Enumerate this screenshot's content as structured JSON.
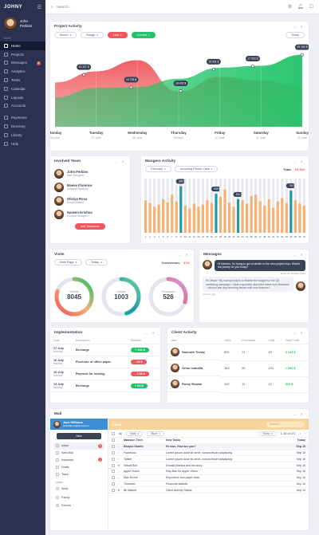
{
  "brand": "JOHNY",
  "user": {
    "name_line1": "John",
    "name_line2": "Perkins"
  },
  "sidebar": {
    "section_main": "MAIN",
    "items": [
      {
        "label": "Home",
        "icon": "home-icon",
        "active": true
      },
      {
        "label": "Projects",
        "icon": "folder-icon"
      },
      {
        "label": "Messages",
        "icon": "message-icon",
        "badge": "5"
      },
      {
        "label": "Analytics",
        "icon": "chart-icon"
      },
      {
        "label": "Tasks",
        "icon": "tasks-icon"
      },
      {
        "label": "Calendar",
        "icon": "calendar-icon"
      },
      {
        "label": "Layouts",
        "icon": "layout-icon"
      },
      {
        "label": "Accounts",
        "icon": "user-icon"
      }
    ],
    "items2": [
      {
        "label": "Payments",
        "icon": "payment-icon"
      },
      {
        "label": "Directory",
        "icon": "directory-icon"
      },
      {
        "label": "Library",
        "icon": "library-icon"
      },
      {
        "label": "Help",
        "icon": "help-icon"
      }
    ]
  },
  "search": {
    "placeholder": "Search..."
  },
  "project": {
    "title": "Project Activity",
    "filters": [
      "Month",
      "Range",
      "Last",
      "Current"
    ],
    "today": "Today"
  },
  "chart_data": {
    "type": "area",
    "categories": [
      "Monday",
      "Tuesday",
      "Wednesday",
      "Thursday",
      "Friday",
      "Saturday",
      "Sunday"
    ],
    "dates": [
      "06 June",
      "07 June",
      "08 June",
      "09 June",
      "10 June",
      "11 June",
      "12 June"
    ],
    "series": [
      {
        "values": [
          12000,
          15000,
          18000,
          9500,
          13500,
          12500,
          11000
        ],
        "color": "#f0565b"
      },
      {
        "values": [
          8000,
          10500,
          10728,
          13000,
          16000,
          16500,
          19500
        ],
        "color": "#21c368"
      }
    ],
    "annotations": [
      "12 107 $",
      "10 728 $",
      "18 400 $",
      "15 631 $",
      "17 903 $",
      "19 193 $"
    ]
  },
  "team": {
    "title": "Involved Team",
    "members": [
      {
        "name": "John Perkins",
        "role": "Web Designer"
      },
      {
        "name": "Maeve Florence",
        "role": "Software Analysis"
      },
      {
        "name": "Oliviya Rosa",
        "role": "Scrum Master"
      },
      {
        "name": "Naveen Krishna",
        "role": "Product Designer"
      }
    ],
    "add_label": "Add Teammate"
  },
  "managers": {
    "title": "Mangers Activity",
    "month": "February",
    "type": "Incoming Phone Calls",
    "total_label": "Total:",
    "total_value": "19 302",
    "bar_values": [
      60,
      55,
      48,
      52,
      62,
      56,
      70,
      58,
      86,
      50,
      45,
      54,
      48,
      52,
      60,
      55,
      72,
      66,
      80,
      56,
      48,
      62,
      60,
      54,
      68,
      70,
      58,
      50,
      62,
      46,
      58,
      64,
      55,
      78,
      60,
      54,
      50
    ],
    "highlights": [
      {
        "index": 8,
        "value": "665"
      },
      {
        "index": 16,
        "value": "659"
      },
      {
        "index": 21,
        "value": "910"
      },
      {
        "index": 33,
        "value": "782"
      }
    ],
    "ticks": [
      "1",
      "2",
      "3",
      "4",
      "5",
      "6",
      "7",
      "8",
      "9",
      "10",
      "11",
      "12",
      "13",
      "14",
      "15",
      "16",
      "17",
      "18",
      "19",
      "20",
      "21",
      "22",
      "23",
      "24",
      "25",
      "26",
      "27",
      "28",
      "29",
      "30",
      "31",
      "32",
      "33",
      "34",
      "35",
      "36",
      "37"
    ]
  },
  "visits": {
    "title": "Visits",
    "source": "Web Page",
    "period": "Today",
    "conversion_label": "Conversion:",
    "conversion_value": "31%",
    "rings": [
      {
        "label": "Visitors",
        "value": "8045",
        "fraction": 0.8
      },
      {
        "label": "Unique",
        "value": "1003",
        "fraction": 0.45
      },
      {
        "label": "Purchases",
        "value": "526",
        "fraction": 0.3
      }
    ]
  },
  "messages": {
    "title": "Messages",
    "m1": "Hi Naveen, I'm trying to get a handle on the new project reqs. What's the priority for you today?",
    "m1_time": "16:16, 07 October 2024",
    "m2": "Hi Olivya! \"My main priority is to finalize the budget for the Q4 marketing campaign. I have a question about the latest user feedback – did you see any recurring issues with new features?",
    "m2_time": "10 mins ago"
  },
  "impl": {
    "title": "Implementation",
    "headers": [
      "Date",
      "Description",
      "Balance"
    ],
    "rows": [
      {
        "date": "17 July",
        "day": "Monday",
        "desc": "Recharge",
        "amount": "+ 134 $",
        "color": "#21c368"
      },
      {
        "date": "16 July",
        "day": "Monday",
        "desc": "Purchase of office paper",
        "amount": "- 30 $",
        "color": "#f0565b"
      },
      {
        "date": "16 July",
        "day": "Monday",
        "desc": "Payment for hosting",
        "amount": "- 7.00 $",
        "color": "#f0565b"
      },
      {
        "date": "14 July",
        "day": "Monday",
        "desc": "Recharge",
        "amount": "+ 68 $",
        "color": "#21c368"
      }
    ]
  },
  "client": {
    "title": "Client Activity",
    "headers": [
      "User",
      "Visits",
      "Purchases",
      "Calls",
      "Total Profit"
    ],
    "rows": [
      {
        "name": "Samrath Tevraj",
        "visits": "801",
        "purchases": "21",
        "calls": "43",
        "profit": "3 244 $"
      },
      {
        "name": "Omar Isabella",
        "visits": "343",
        "purchases": "92",
        "calls": "102",
        "profit": "1 082 $"
      },
      {
        "name": "Romy Rowan",
        "visits": "192",
        "purchases": "11",
        "calls": "12",
        "profit": "532 $"
      }
    ]
  },
  "mail": {
    "title": "Mail",
    "account_name": "Jack Williams",
    "account_email": "jackwilliams@gmail.com",
    "new_label": "New",
    "folders": [
      {
        "label": "Inbox",
        "badge": "2"
      },
      {
        "label": "Sent Mail"
      },
      {
        "label": "Important",
        "badge": "1"
      },
      {
        "label": "Drafts"
      },
      {
        "label": "Trash"
      }
    ],
    "labels_title": "Labels",
    "labels": [
      "Work",
      "Family",
      "Friends"
    ],
    "inbox_title": "Inbox",
    "search_placeholder": "Search...",
    "toolbar": {
      "all": "All",
      "mark": "Mark",
      "move": "Move",
      "show": "Show",
      "count": "1–50 of 471"
    },
    "rows": [
      {
        "from": "Mansion Tech",
        "subject": "New Tasks",
        "date": "Today",
        "bold": true
      },
      {
        "from": "Blurpix Studio",
        "subject": "Hi man, How are you?",
        "date": "Sep 19",
        "bold": true
      },
      {
        "from": "Facebook",
        "subject": "Lorem ipsum dolor sit amet, consectetuer adipiscing",
        "date": "Sep 18"
      },
      {
        "from": "Twitter",
        "subject": "Lorem ipsum dolor sit amet, consectetuer adipiscing",
        "date": "Sep 18"
      },
      {
        "from": "Virtual Box",
        "subject": "Donald Markus and his story",
        "date": "Sep 16",
        "star": true
      },
      {
        "from": "Apple Vision",
        "subject": "Ray-Ban for Apple Vision",
        "date": "Sep 16"
      },
      {
        "from": "Max Drone",
        "subject": "Reportbox and paper docs",
        "date": "Sep 15"
      },
      {
        "from": "Timeweb",
        "subject": "Financial statistic",
        "date": "Sep 15"
      },
      {
        "from": "Bit Market",
        "subject": "Client Activity Status",
        "date": "Sep 14",
        "star": true
      }
    ]
  }
}
